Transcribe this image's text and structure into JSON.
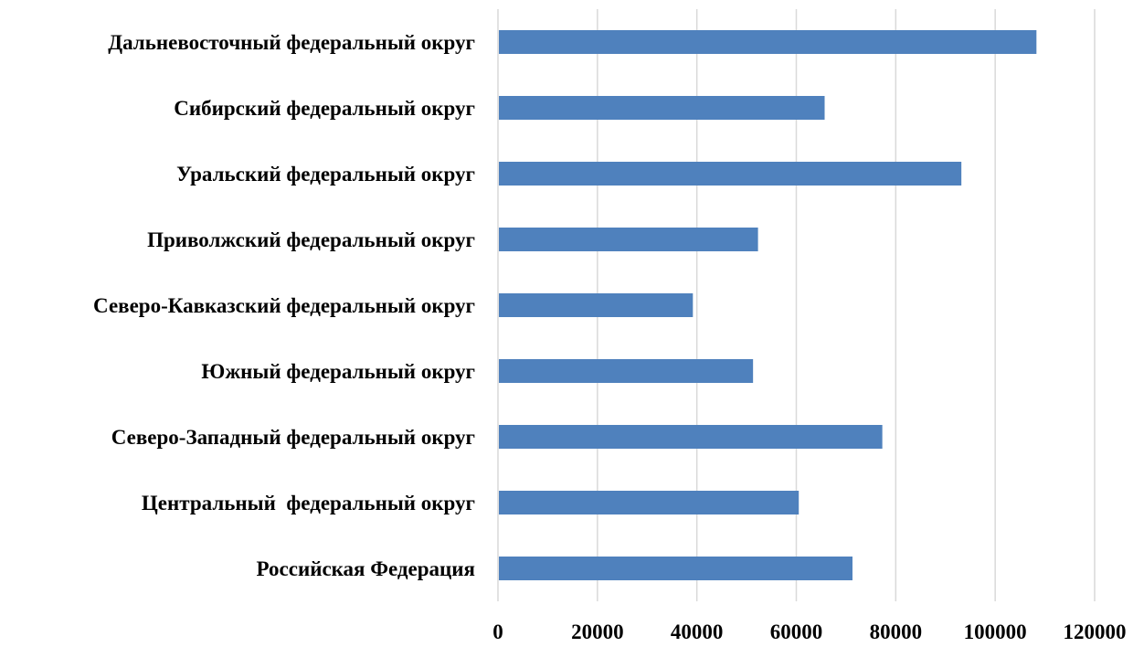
{
  "chart_data": {
    "type": "bar",
    "orientation": "horizontal",
    "title": "",
    "xlabel": "",
    "ylabel": "",
    "categories": [
      "Дальневосточный федеральный округ",
      "Сибирский федеральный округ",
      "Уральский федеральный округ",
      "Приволжский федеральный округ",
      "Северо-Кавказский федеральный округ",
      "Южный федеральный округ",
      "Северо-Западный федеральный округ",
      "Центральный  федеральный округ",
      "Российская Федерация"
    ],
    "values": [
      108300,
      65700,
      93200,
      52300,
      39200,
      51300,
      77300,
      60500,
      71300
    ],
    "xlim": [
      0,
      120000
    ],
    "xticks": [
      "0",
      "20000",
      "40000",
      "60000",
      "80000",
      "100000",
      "120000"
    ],
    "grid": "vertical",
    "legend": "none",
    "bar_color": "#4f81bd"
  }
}
